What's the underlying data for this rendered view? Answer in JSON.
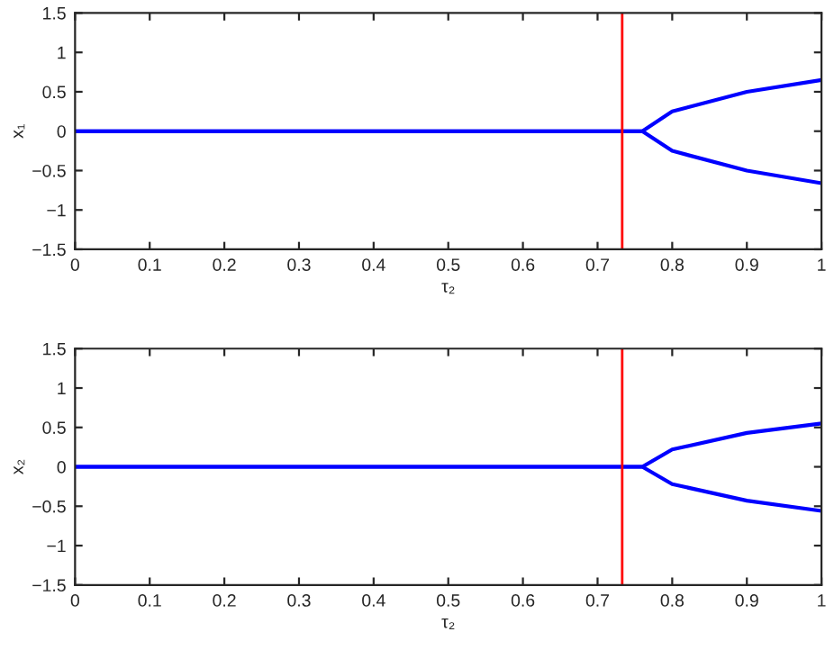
{
  "chart_data": [
    {
      "type": "line",
      "xlabel": "τ₂",
      "ylabel": "x₁",
      "xlim": [
        0,
        1
      ],
      "ylim": [
        -1.5,
        1.5
      ],
      "xticks": [
        0,
        0.1,
        0.2,
        0.3,
        0.4,
        0.5,
        0.6,
        0.7,
        0.8,
        0.9,
        1
      ],
      "yticks": [
        {
          "value": -1.5,
          "label": "−1.5"
        },
        {
          "value": -1,
          "label": "−1"
        },
        {
          "value": -0.5,
          "label": "−0.5"
        },
        0,
        0.5,
        1,
        1.5
      ],
      "grid": false,
      "legend": false,
      "marker": "none",
      "line_style": "solid",
      "series": [
        {
          "color": "#0000ff",
          "x": [
            0,
            0.75,
            0.76,
            0.8,
            0.9,
            1
          ],
          "values": [
            0,
            0,
            0,
            0.25,
            0.5,
            0.65
          ]
        },
        {
          "color": "#0000ff",
          "x": [
            0,
            0.75,
            0.76,
            0.8,
            0.9,
            1
          ],
          "values": [
            0,
            0,
            0,
            -0.25,
            -0.5,
            -0.66
          ]
        }
      ],
      "ref_lines": [
        {
          "axis": "x",
          "value": 0.733,
          "color": "#ff0000"
        }
      ]
    },
    {
      "type": "line",
      "xlabel": "τ₂",
      "ylabel": "x₂",
      "xlim": [
        0,
        1
      ],
      "ylim": [
        -1.5,
        1.5
      ],
      "xticks": [
        0,
        0.1,
        0.2,
        0.3,
        0.4,
        0.5,
        0.6,
        0.7,
        0.8,
        0.9,
        1
      ],
      "yticks": [
        {
          "value": -1.5,
          "label": "−1.5"
        },
        {
          "value": -1,
          "label": "−1"
        },
        {
          "value": -0.5,
          "label": "−0.5"
        },
        0,
        0.5,
        1,
        1.5
      ],
      "grid": false,
      "legend": false,
      "marker": "none",
      "line_style": "solid",
      "series": [
        {
          "color": "#0000ff",
          "x": [
            0,
            0.75,
            0.76,
            0.8,
            0.9,
            1
          ],
          "values": [
            0,
            0,
            0,
            0.22,
            0.43,
            0.55
          ]
        },
        {
          "color": "#0000ff",
          "x": [
            0,
            0.75,
            0.76,
            0.8,
            0.9,
            1
          ],
          "values": [
            0,
            0,
            0,
            -0.22,
            -0.43,
            -0.56
          ]
        }
      ],
      "ref_lines": [
        {
          "axis": "x",
          "value": 0.733,
          "color": "#ff0000"
        }
      ]
    }
  ]
}
